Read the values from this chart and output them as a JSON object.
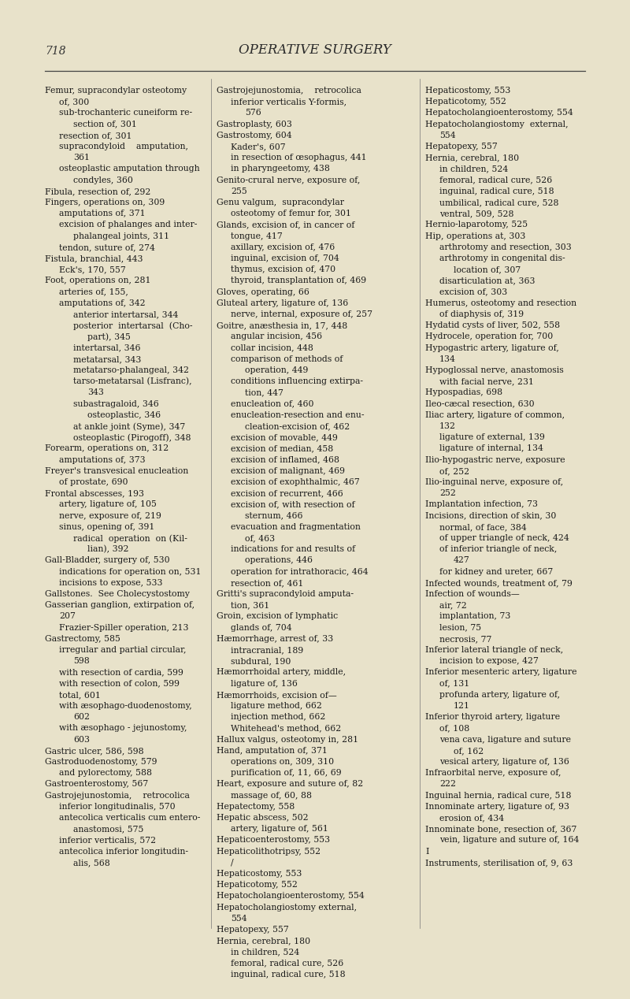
{
  "page_number": "718",
  "header": "OPERATIVE SURGERY",
  "bg_color": "#e8e2ca",
  "text_color": "#1a1a1a",
  "header_color": "#2a2a2a",
  "page_num_color": "#333333",
  "col1": [
    "Femur, supracondylar osteotomy",
    "    of, 300",
    "    sub-trochanteric cuneiform re-",
    "        section of, 301",
    "    resection of, 301",
    "    supracondyloid    amputation,",
    "        361",
    "    osteoplastic amputation through",
    "        condyles, 360",
    "Fibula, resection of, 292",
    "Fingers, operations on, 309",
    "    amputations of, 371",
    "    excision of phalanges and inter-",
    "        phalangeal joints, 311",
    "    tendon, suture of, 274",
    "Fistula, branchial, 443",
    "    Eck's, 170, 557",
    "Foot, operations on, 281",
    "    arteries of, 155,",
    "    amputations of, 342",
    "        anterior intertarsal, 344",
    "        posterior  intertarsal  (Cho-",
    "            part), 345",
    "        intertarsal, 346",
    "        metatarsal, 343",
    "        metatarso-phalangeal, 342",
    "        tarso-metatarsal (Lisfranc),",
    "            343",
    "        subastragaloid, 346",
    "            osteoplastic, 346",
    "        at ankle joint (Syme), 347",
    "        osteoplastic (Pirogoff), 348",
    "Forearm, operations on, 312",
    "    amputations of, 373",
    "Freyer's transvesical enucleation",
    "    of prostate, 690",
    "Frontal abscesses, 193",
    "    artery, ligature of, 105",
    "    nerve, exposure of, 219",
    "    sinus, opening of, 391",
    "        radical  operation  on (Kil-",
    "            lian), 392",
    "Gall-Bladder, surgery of, 530",
    "    indications for operation on, 531",
    "    incisions to expose, 533",
    "Gallstones.  See Cholecystostomy",
    "Gasserian ganglion, extirpation of,",
    "    207",
    "    Frazier-Spiller operation, 213",
    "Gastrectomy, 585",
    "    irregular and partial circular,",
    "        598",
    "    with resection of cardia, 599",
    "    with resection of colon, 599",
    "    total, 601",
    "    with æsophago-duodenostomy,",
    "        602",
    "    with æsophago - jejunostomy,",
    "        603",
    "Gastric ulcer, 586, 598",
    "Gastroduodenostomy, 579",
    "    and pylorectomy, 588",
    "Gastroenterostomy, 567",
    "Gastrojejunostomia,    retrocolica",
    "    inferior longitudinalis, 570",
    "    antecolica verticalis cum entero-",
    "        anastomosi, 575",
    "    inferior verticalis, 572",
    "    antecolica inferior longitudin-",
    "        alis, 568"
  ],
  "col2": [
    "Gastrojejunostomia,    retrocolica",
    "    inferior verticalis Y-formis,",
    "        576",
    "Gastroplasty, 603",
    "Gastrostomy, 604",
    "    Kader's, 607",
    "    in resection of œsophagus, 441",
    "    in pharyngeetomy, 438",
    "Genito-crural nerve, exposure of,",
    "    255",
    "Genu valgum,  supracondylar",
    "    osteotomy of femur for, 301",
    "Glands, excision of, in cancer of",
    "    tongue, 417",
    "    axillary, excision of, 476",
    "    inguinal, excision of, 704",
    "    thymus, excision of, 470",
    "    thyroid, transplantation of, 469",
    "Gloves, operating, 66",
    "Gluteal artery, ligature of, 136",
    "    nerve, internal, exposure of, 257",
    "Goitre, anæsthesia in, 17, 448",
    "    angular incision, 456",
    "    collar incision, 448",
    "    comparison of methods of",
    "        operation, 449",
    "    conditions influencing extirpa-",
    "        tion, 447",
    "    enucleation of, 460",
    "    enucleation-resection and enu-",
    "        cleation-excision of, 462",
    "    excision of movable, 449",
    "    excision of median, 458",
    "    excision of inflamed, 468",
    "    excision of malignant, 469",
    "    excision of exophthalmic, 467",
    "    excision of recurrent, 466",
    "    excision of, with resection of",
    "        sternum, 466",
    "    evacuation and fragmentation",
    "        of, 463",
    "    indications for and results of",
    "        operations, 446",
    "    operation for intrathoracic, 464",
    "    resection of, 461",
    "Gritti's supracondyloid amputa-",
    "    tion, 361",
    "Groin, excision of lymphatic",
    "    glands of, 704",
    "Hæmorrhage, arrest of, 33",
    "    intracranial, 189",
    "    subdural, 190",
    "Hæmorrhoidal artery, middle,",
    "    ligature of, 136",
    "Hæmorrhoids, excision of—",
    "    ligature method, 662",
    "    injection method, 662",
    "    Whitehead's method, 662",
    "Hallux valgus, osteotomy in, 281",
    "Hand, amputation of, 371",
    "    operations on, 309, 310",
    "    purification of, 11, 66, 69",
    "Heart, exposure and suture of, 82",
    "    massage of, 60, 88",
    "Hepatectomy, 558",
    "Hepatic abscess, 502",
    "    artery, ligature of, 561",
    "Hepaticoenterostomy, 553",
    "Hepaticolithotripsy, 552",
    "    /",
    "Hepaticostomy, 553",
    "Hepaticotomy, 552",
    "Hepatocholangioenterostomy, 554",
    "Hepatocholangiostomy external,",
    "    554",
    "Hepatopexy, 557",
    "Hernia, cerebral, 180",
    "    in children, 524",
    "    femoral, radical cure, 526",
    "    inguinal, radical cure, 518",
    "    umbilical, radical cure, 528",
    "    ventral, 509, 528",
    "Hernio-laparotomy, 525",
    "Hip, operations at, 303",
    "    arthrotomy and resection, 303",
    "    arthrotomy in congenital dis-",
    "        location of, 307",
    "    disarticulation at, 363",
    "    excision of, 303",
    "Humerus, osteotomy and resection",
    "    of diaphysis of, 319",
    "Hydatid cysts of liver, 502, 558",
    "Hydrocele, operation for, 700",
    "Hypogastric artery, ligature of, 134",
    "Hypoglossal nerve, anastomosis",
    "    with facial nerve, 231",
    "Hypospadias, 698"
  ],
  "col3": [
    "Hepaticostomy, 553",
    "Hepaticotomy, 552",
    "Hepatocholangioenterostomy, 554",
    "Hepatocholangiostomy  external,",
    "    554",
    "Hepatopexy, 557",
    "Hernia, cerebral, 180",
    "    in children, 524",
    "    femoral, radical cure, 526",
    "    inguinal, radical cure, 518",
    "    umbilical, radical cure, 528",
    "    ventral, 509, 528",
    "Hernio-laparotomy, 525",
    "Hip, operations at, 303",
    "    arthrotomy and resection, 303",
    "    arthrotomy in congenital dis-",
    "        location of, 307",
    "    disarticulation at, 363",
    "    excision of, 303",
    "Humerus, osteotomy and resection",
    "    of diaphysis of, 319",
    "Hydatid cysts of liver, 502, 558",
    "Hydrocele, operation for, 700",
    "Hypogastric artery, ligature of,",
    "    134",
    "Hypoglossal nerve, anastomosis",
    "    with facial nerve, 231",
    "Hypospadias, 698",
    "Ileo-cæcal resection, 630",
    "Iliac artery, ligature of common,",
    "    132",
    "    ligature of external, 139",
    "    ligature of internal, 134",
    "Ilio-hypogastric nerve, exposure",
    "    of, 252",
    "Ilio-inguinal nerve, exposure of,",
    "    252",
    "Implantation infection, 73",
    "Incisions, direction of skin, 30",
    "    normal, of face, 384",
    "    of upper triangle of neck, 424",
    "    of inferior triangle of neck,",
    "        427",
    "    for kidney and ureter, 667",
    "Infected wounds, treatment of, 79",
    "Infection of wounds—",
    "    air, 72",
    "    implantation, 73",
    "    lesion, 75",
    "    necrosis, 77",
    "Inferior lateral triangle of neck,",
    "    incision to expose, 427",
    "Inferior mesenteric artery, ligature",
    "    of, 131",
    "    profunda artery, ligature of,",
    "        121",
    "Inferior thyroid artery, ligature",
    "    of, 108",
    "    vena cava, ligature and suture",
    "        of, 162",
    "    vesical artery, ligature of, 136",
    "Infraorbital nerve, exposure of,",
    "    222",
    "Inguinal hernia, radical cure, 518",
    "Innominate artery, ligature of, 93",
    "    erosion of, 434",
    "Innominate bone, resection of, 367",
    "    vein, ligature and suture of, 164",
    "I",
    "Instruments, sterilisation of, 9, 63"
  ]
}
